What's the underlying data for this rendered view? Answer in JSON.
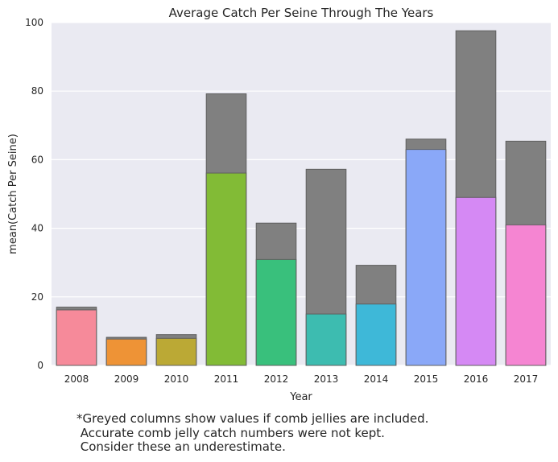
{
  "chart_data": {
    "type": "bar",
    "title": "Average Catch Per Seine Through The Years",
    "xlabel": "Year",
    "ylabel": "mean(Catch Per Seine)",
    "categories": [
      "2008",
      "2009",
      "2010",
      "2011",
      "2012",
      "2013",
      "2014",
      "2015",
      "2016",
      "2017"
    ],
    "series": [
      {
        "values": [
          17.0,
          8.2,
          9.0,
          79.2,
          41.5,
          57.2,
          29.2,
          66.0,
          97.6,
          65.4
        ],
        "color": "#808080"
      },
      {
        "values": [
          16.2,
          7.7,
          7.9,
          56.1,
          30.9,
          15.0,
          17.9,
          63.0,
          49.0,
          41.0
        ],
        "colors": [
          "#f68a9a",
          "#ee9336",
          "#bba935",
          "#82bb36",
          "#39c07c",
          "#3dbcb0",
          "#3eb8d8",
          "#8aa8f8",
          "#d589f4",
          "#f585d2"
        ]
      }
    ],
    "ylim": [
      0,
      100
    ],
    "yticks": [
      0,
      20,
      40,
      60,
      80,
      100
    ],
    "grid": true,
    "background": "#eaeaf2"
  },
  "footnote": {
    "lines": [
      "*Greyed columns show values if comb jellies are included.",
      " Accurate comb jelly catch numbers were not kept.",
      " Consider these an underestimate."
    ]
  }
}
